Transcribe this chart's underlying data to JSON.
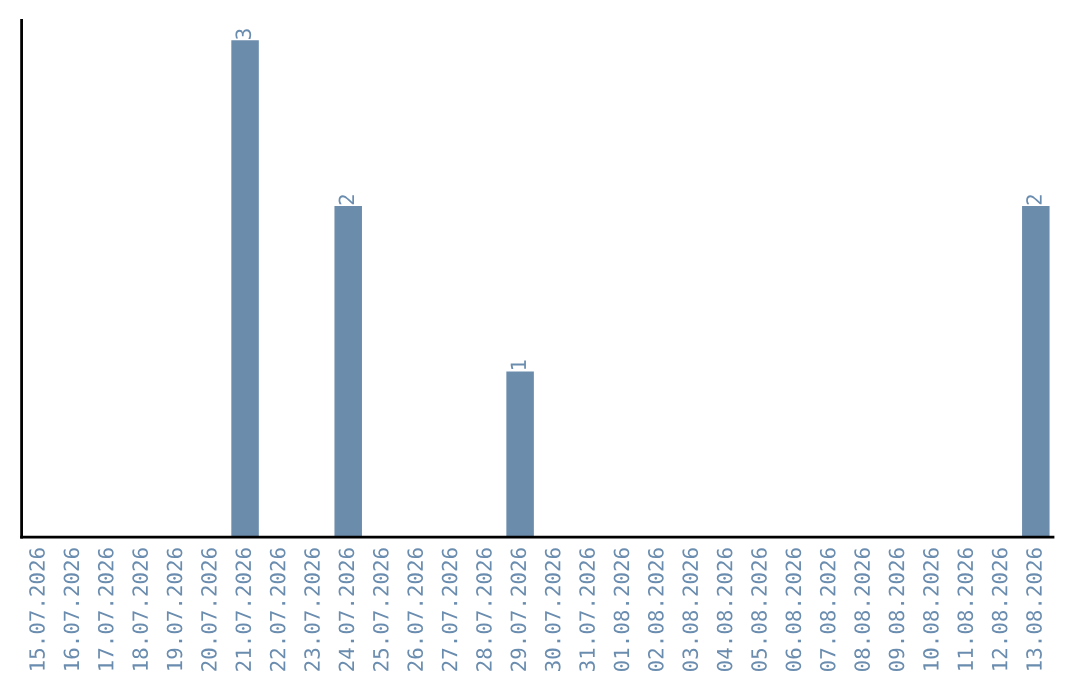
{
  "chart_data": {
    "type": "bar",
    "categories": [
      "15.07.2026",
      "16.07.2026",
      "17.07.2026",
      "18.07.2026",
      "19.07.2026",
      "20.07.2026",
      "21.07.2026",
      "22.07.2026",
      "23.07.2026",
      "24.07.2026",
      "25.07.2026",
      "26.07.2026",
      "27.07.2026",
      "28.07.2026",
      "29.07.2026",
      "30.07.2026",
      "31.07.2026",
      "01.08.2026",
      "02.08.2026",
      "03.08.2026",
      "04.08.2026",
      "05.08.2026",
      "06.08.2026",
      "07.08.2026",
      "08.08.2026",
      "09.08.2026",
      "10.08.2026",
      "11.08.2026",
      "12.08.2026",
      "13.08.2026"
    ],
    "values": [
      0,
      0,
      0,
      0,
      0,
      0,
      3,
      0,
      0,
      2,
      0,
      0,
      0,
      0,
      1,
      0,
      0,
      0,
      0,
      0,
      0,
      0,
      0,
      0,
      0,
      0,
      0,
      0,
      0,
      2
    ],
    "value_labels": [
      null,
      null,
      null,
      null,
      null,
      null,
      "3",
      null,
      null,
      "2",
      null,
      null,
      null,
      null,
      "1",
      null,
      null,
      null,
      null,
      null,
      null,
      null,
      null,
      null,
      null,
      null,
      null,
      null,
      null,
      "2"
    ],
    "color": "#6b8cab",
    "ylim": [
      0,
      3.12
    ],
    "tick_labels": "x",
    "grid": false,
    "legend": false
  }
}
